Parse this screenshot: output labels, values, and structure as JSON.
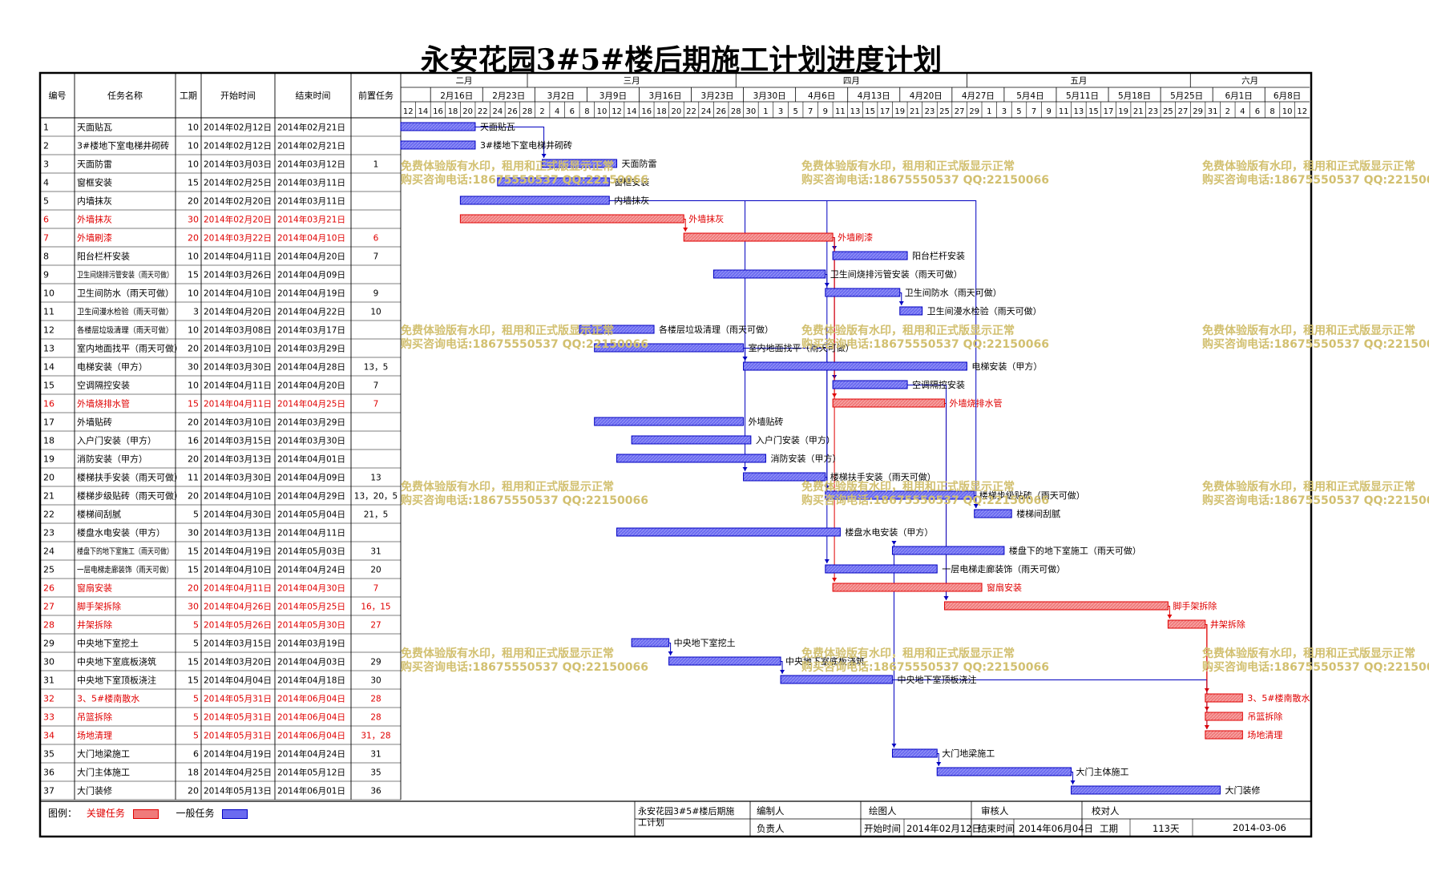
{
  "title": "永安花园3#5#楼后期施工计划进度计划",
  "headers": {
    "id": "编号",
    "name": "任务名称",
    "dur": "工期",
    "start": "开始时间",
    "end": "结束时间",
    "pred": "前置任务"
  },
  "months": [
    "二月",
    "三月",
    "四月",
    "五月",
    "六月"
  ],
  "weeks": [
    "2月16日",
    "2月23日",
    "3月2日",
    "3月9日",
    "3月16日",
    "3月23日",
    "3月30日",
    "4月6日",
    "4月13日",
    "4月20日",
    "4月27日",
    "5月4日",
    "5月11日",
    "5月18日",
    "5月25日",
    "6月1日",
    "6月8日"
  ],
  "days": [
    "12",
    "14",
    "16",
    "18",
    "20",
    "22",
    "24",
    "26",
    "28",
    "2",
    "4",
    "6",
    "8",
    "10",
    "12",
    "14",
    "16",
    "18",
    "20",
    "22",
    "24",
    "26",
    "28",
    "30",
    "1",
    "3",
    "5",
    "7",
    "9",
    "11",
    "13",
    "15",
    "17",
    "19",
    "21",
    "23",
    "25",
    "27",
    "29",
    "1",
    "3",
    "5",
    "7",
    "9",
    "11",
    "13",
    "15",
    "17",
    "19",
    "21",
    "23",
    "25",
    "27",
    "29",
    "31",
    "2",
    "4",
    "6",
    "8",
    "10",
    "12"
  ],
  "tasks": [
    {
      "id": "1",
      "name": "天面贴瓦",
      "dur": "10",
      "start": "2014年02月12日",
      "end": "2014年02月21日",
      "pred": "",
      "critical": false,
      "s": 0,
      "d": 10
    },
    {
      "id": "2",
      "name": "3#楼地下室电梯井砌砖",
      "dur": "10",
      "start": "2014年02月12日",
      "end": "2014年02月21日",
      "pred": "",
      "critical": false,
      "s": 0,
      "d": 10
    },
    {
      "id": "3",
      "name": "天面防雷",
      "dur": "10",
      "start": "2014年03月03日",
      "end": "2014年03月12日",
      "pred": "1",
      "critical": false,
      "s": 19,
      "d": 10
    },
    {
      "id": "4",
      "name": "窗框安装",
      "dur": "15",
      "start": "2014年02月25日",
      "end": "2014年03月11日",
      "pred": "",
      "critical": false,
      "s": 13,
      "d": 15
    },
    {
      "id": "5",
      "name": "内墙抹灰",
      "dur": "20",
      "start": "2014年02月20日",
      "end": "2014年03月11日",
      "pred": "",
      "critical": false,
      "s": 8,
      "d": 20
    },
    {
      "id": "6",
      "name": "外墙抹灰",
      "dur": "30",
      "start": "2014年02月20日",
      "end": "2014年03月21日",
      "pred": "",
      "critical": true,
      "s": 8,
      "d": 30
    },
    {
      "id": "7",
      "name": "外墙刷漆",
      "dur": "20",
      "start": "2014年03月22日",
      "end": "2014年04月10日",
      "pred": "6",
      "critical": true,
      "s": 38,
      "d": 20
    },
    {
      "id": "8",
      "name": "阳台栏杆安装",
      "dur": "10",
      "start": "2014年04月11日",
      "end": "2014年04月20日",
      "pred": "7",
      "critical": false,
      "s": 58,
      "d": 10
    },
    {
      "id": "9",
      "name": "卫生间烧排污管安装（雨天可做）",
      "dur": "15",
      "start": "2014年03月26日",
      "end": "2014年04月09日",
      "pred": "",
      "critical": false,
      "s": 42,
      "d": 15
    },
    {
      "id": "10",
      "name": "卫生间防水（雨天可做）",
      "dur": "10",
      "start": "2014年04月10日",
      "end": "2014年04月19日",
      "pred": "9",
      "critical": false,
      "s": 57,
      "d": 10
    },
    {
      "id": "11",
      "name": "卫生间漫水检验（雨天可做）",
      "dur": "3",
      "start": "2014年04月20日",
      "end": "2014年04月22日",
      "pred": "10",
      "critical": false,
      "s": 67,
      "d": 3
    },
    {
      "id": "12",
      "name": "各楼层垃圾清理（雨天可做）",
      "dur": "10",
      "start": "2014年03月08日",
      "end": "2014年03月17日",
      "pred": "",
      "critical": false,
      "s": 24,
      "d": 10
    },
    {
      "id": "13",
      "name": "室内地面找平（雨天可做）",
      "dur": "20",
      "start": "2014年03月10日",
      "end": "2014年03月29日",
      "pred": "",
      "critical": false,
      "s": 26,
      "d": 20
    },
    {
      "id": "14",
      "name": "电梯安装（甲方）",
      "dur": "30",
      "start": "2014年03月30日",
      "end": "2014年04月28日",
      "pred": "13，5",
      "critical": false,
      "s": 46,
      "d": 30
    },
    {
      "id": "15",
      "name": "空调隔控安装",
      "dur": "10",
      "start": "2014年04月11日",
      "end": "2014年04月20日",
      "pred": "7",
      "critical": false,
      "s": 58,
      "d": 10
    },
    {
      "id": "16",
      "name": "外墙烧排水管",
      "dur": "15",
      "start": "2014年04月11日",
      "end": "2014年04月25日",
      "pred": "7",
      "critical": true,
      "s": 58,
      "d": 15
    },
    {
      "id": "17",
      "name": "外墙贴砖",
      "dur": "20",
      "start": "2014年03月10日",
      "end": "2014年03月29日",
      "pred": "",
      "critical": false,
      "s": 26,
      "d": 20
    },
    {
      "id": "18",
      "name": "入户门安装（甲方）",
      "dur": "16",
      "start": "2014年03月15日",
      "end": "2014年03月30日",
      "pred": "",
      "critical": false,
      "s": 31,
      "d": 16
    },
    {
      "id": "19",
      "name": "消防安装（甲方）",
      "dur": "20",
      "start": "2014年03月13日",
      "end": "2014年04月01日",
      "pred": "",
      "critical": false,
      "s": 29,
      "d": 20
    },
    {
      "id": "20",
      "name": "楼梯扶手安装（雨天可做）",
      "dur": "11",
      "start": "2014年03月30日",
      "end": "2014年04月09日",
      "pred": "13",
      "critical": false,
      "s": 46,
      "d": 11
    },
    {
      "id": "21",
      "name": "楼梯步级贴砖（雨天可做）",
      "dur": "20",
      "start": "2014年04月10日",
      "end": "2014年04月29日",
      "pred": "13，20，5",
      "critical": false,
      "s": 57,
      "d": 20
    },
    {
      "id": "22",
      "name": "楼梯间刮腻",
      "dur": "5",
      "start": "2014年04月30日",
      "end": "2014年05月04日",
      "pred": "21，5",
      "critical": false,
      "s": 77,
      "d": 5
    },
    {
      "id": "23",
      "name": "楼盘水电安装（甲方）",
      "dur": "30",
      "start": "2014年03月13日",
      "end": "2014年04月11日",
      "pred": "",
      "critical": false,
      "s": 29,
      "d": 30
    },
    {
      "id": "24",
      "name": "楼盘下的地下室施工（雨天可做）",
      "dur": "15",
      "start": "2014年04月19日",
      "end": "2014年05月03日",
      "pred": "31",
      "critical": false,
      "s": 66,
      "d": 15
    },
    {
      "id": "25",
      "name": "一层电梯走廊装饰（雨天可做）",
      "dur": "15",
      "start": "2014年04月10日",
      "end": "2014年04月24日",
      "pred": "20",
      "critical": false,
      "s": 57,
      "d": 15
    },
    {
      "id": "26",
      "name": "窗扇安装",
      "dur": "20",
      "start": "2014年04月11日",
      "end": "2014年04月30日",
      "pred": "7",
      "critical": true,
      "s": 58,
      "d": 20
    },
    {
      "id": "27",
      "name": "脚手架拆除",
      "dur": "30",
      "start": "2014年04月26日",
      "end": "2014年05月25日",
      "pred": "16，15",
      "critical": true,
      "s": 73,
      "d": 30
    },
    {
      "id": "28",
      "name": "井架拆除",
      "dur": "5",
      "start": "2014年05月26日",
      "end": "2014年05月30日",
      "pred": "27",
      "critical": true,
      "s": 103,
      "d": 5
    },
    {
      "id": "29",
      "name": "中央地下室挖土",
      "dur": "5",
      "start": "2014年03月15日",
      "end": "2014年03月19日",
      "pred": "",
      "critical": false,
      "s": 31,
      "d": 5
    },
    {
      "id": "30",
      "name": "中央地下室底板浇筑",
      "dur": "15",
      "start": "2014年03月20日",
      "end": "2014年04月03日",
      "pred": "29",
      "critical": false,
      "s": 36,
      "d": 15
    },
    {
      "id": "31",
      "name": "中央地下室顶板浇注",
      "dur": "15",
      "start": "2014年04月04日",
      "end": "2014年04月18日",
      "pred": "30",
      "critical": false,
      "s": 51,
      "d": 15
    },
    {
      "id": "32",
      "name": "3、5#楼南散水",
      "dur": "5",
      "start": "2014年05月31日",
      "end": "2014年06月04日",
      "pred": "28",
      "critical": true,
      "s": 108,
      "d": 5
    },
    {
      "id": "33",
      "name": "吊篮拆除",
      "dur": "5",
      "start": "2014年05月31日",
      "end": "2014年06月04日",
      "pred": "28",
      "critical": true,
      "s": 108,
      "d": 5
    },
    {
      "id": "34",
      "name": "场地清理",
      "dur": "5",
      "start": "2014年05月31日",
      "end": "2014年06月04日",
      "pred": "31，28",
      "critical": true,
      "s": 108,
      "d": 5
    },
    {
      "id": "35",
      "name": "大门地梁施工",
      "dur": "6",
      "start": "2014年04月19日",
      "end": "2014年04月24日",
      "pred": "31",
      "critical": false,
      "s": 66,
      "d": 6
    },
    {
      "id": "36",
      "name": "大门主体施工",
      "dur": "18",
      "start": "2014年04月25日",
      "end": "2014年05月12日",
      "pred": "35",
      "critical": false,
      "s": 72,
      "d": 18
    },
    {
      "id": "37",
      "name": "大门装修",
      "dur": "20",
      "start": "2014年05月13日",
      "end": "2014年06月01日",
      "pred": "36",
      "critical": false,
      "s": 90,
      "d": 20
    }
  ],
  "legend": {
    "label": "图例：",
    "critical": "关键任务",
    "normal": "一般任务"
  },
  "footer": {
    "project": "永安花园3#5#楼后期施工计划",
    "compiler": "编制人",
    "drafter": "绘图人",
    "reviewer": "审核人",
    "checker": "校对人",
    "owner": "负责人",
    "start_label": "开始时间",
    "start": "2014年02月12日",
    "end_label": "结束时间",
    "end": "2014年06月04日",
    "dur_label": "工期",
    "dur": "113天",
    "date": "2014-03-06"
  },
  "watermark": {
    "line1": "免费体验版有水印，租用和正式版显示正常",
    "line2": "购买咨询电话:18675550537 QQ:22150066"
  },
  "colors": {
    "critical_fill": "#f07a7a",
    "critical_border": "#e00000",
    "normal_fill": "#6a6af0",
    "normal_border": "#0000c0",
    "critical_text": "#e00000",
    "watermark": "#d2c070"
  }
}
